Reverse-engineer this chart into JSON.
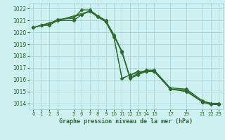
{
  "background_color": "#cff0f0",
  "grid_color": "#aad4d4",
  "line_color": "#2d6b2d",
  "title": "Graphe pression niveau de la mer (hPa)",
  "xlim": [
    -0.5,
    23.5
  ],
  "ylim": [
    1013.5,
    1022.5
  ],
  "xtick_positions": [
    0,
    1,
    2,
    3,
    5,
    6,
    7,
    8,
    9,
    10,
    11,
    12,
    13,
    14,
    15,
    17,
    19,
    21,
    22,
    23
  ],
  "xtick_labels": [
    "0",
    "1",
    "2",
    "3",
    "5",
    "6",
    "7",
    "8",
    "9",
    "10",
    "11",
    "12",
    "13",
    "14",
    "15",
    "17",
    "19",
    "21",
    "22",
    "23"
  ],
  "yticks": [
    1014,
    1015,
    1016,
    1017,
    1018,
    1019,
    1020,
    1021,
    1022
  ],
  "series": [
    {
      "x": [
        0,
        1,
        2,
        3,
        5,
        6,
        7,
        8,
        9,
        10,
        11,
        12,
        13,
        14,
        15,
        17,
        19,
        21,
        22,
        23
      ],
      "y": [
        1020.4,
        1020.6,
        1020.6,
        1021.0,
        1021.0,
        1021.5,
        1021.8,
        1021.3,
        1020.9,
        1019.7,
        1018.3,
        1016.1,
        1016.4,
        1016.7,
        1016.7,
        1015.2,
        1015.1,
        1014.1,
        1013.9,
        1013.9
      ],
      "marker": "D",
      "markersize": 2.5,
      "linewidth": 1.0
    },
    {
      "x": [
        0,
        1,
        2,
        3,
        5,
        6,
        7,
        8,
        9,
        10,
        11,
        12,
        13,
        14,
        15,
        17,
        19,
        21,
        22,
        23
      ],
      "y": [
        1020.4,
        1020.6,
        1020.7,
        1021.1,
        1021.2,
        1021.9,
        1021.9,
        1021.4,
        1021.0,
        1019.8,
        1018.4,
        1016.2,
        1016.5,
        1016.8,
        1016.8,
        1015.3,
        1015.2,
        1014.2,
        1014.0,
        1014.0
      ],
      "marker": "D",
      "markersize": 2.5,
      "linewidth": 1.0
    },
    {
      "x": [
        0,
        3,
        6,
        7,
        9,
        10,
        11,
        12,
        13,
        14,
        15,
        17,
        19,
        21,
        23
      ],
      "y": [
        1020.4,
        1021.0,
        1021.5,
        1021.8,
        1020.9,
        1019.6,
        1016.1,
        1016.4,
        1016.7,
        1016.7,
        1016.7,
        1015.2,
        1015.0,
        1014.1,
        1013.9
      ],
      "marker": "D",
      "markersize": 2.5,
      "linewidth": 1.0
    },
    {
      "x": [
        0,
        3,
        7,
        9,
        10,
        11,
        12,
        14,
        15,
        17,
        19,
        21,
        23
      ],
      "y": [
        1020.4,
        1021.0,
        1021.8,
        1020.9,
        1019.6,
        1016.1,
        1016.4,
        1016.7,
        1016.7,
        1015.2,
        1015.0,
        1014.1,
        1013.9
      ],
      "marker": null,
      "markersize": 0,
      "linewidth": 0.7
    }
  ]
}
